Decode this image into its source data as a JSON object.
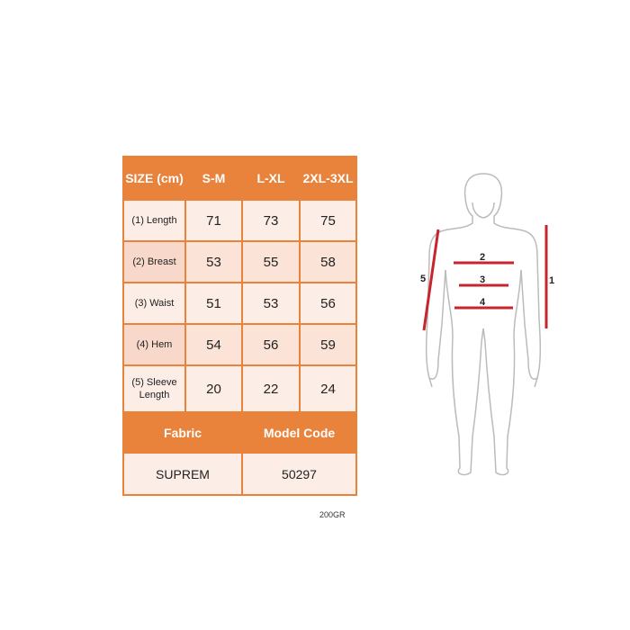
{
  "table": {
    "headers": [
      "SIZE (cm)",
      "S-M",
      "L-XL",
      "2XL-3XL"
    ],
    "rows": [
      {
        "label": "(1) Length",
        "values": [
          "71",
          "73",
          "75"
        ]
      },
      {
        "label": "(2) Breast",
        "values": [
          "53",
          "55",
          "58"
        ]
      },
      {
        "label": "(3) Waist",
        "values": [
          "51",
          "53",
          "56"
        ]
      },
      {
        "label": "(4) Hem",
        "values": [
          "54",
          "56",
          "59"
        ]
      },
      {
        "label": "(5) Sleeve Length",
        "values": [
          "20",
          "22",
          "24"
        ]
      }
    ],
    "footer_headers": [
      "Fabric",
      "Model Code"
    ],
    "footer_values": [
      "SUPREM",
      "50297"
    ]
  },
  "note": "200GR",
  "diagram": {
    "labels": [
      "1",
      "2",
      "3",
      "4",
      "5"
    ]
  },
  "colors": {
    "header": "#E9823A",
    "cell": "#FBE3D8",
    "measure_line": "#C8242F"
  }
}
